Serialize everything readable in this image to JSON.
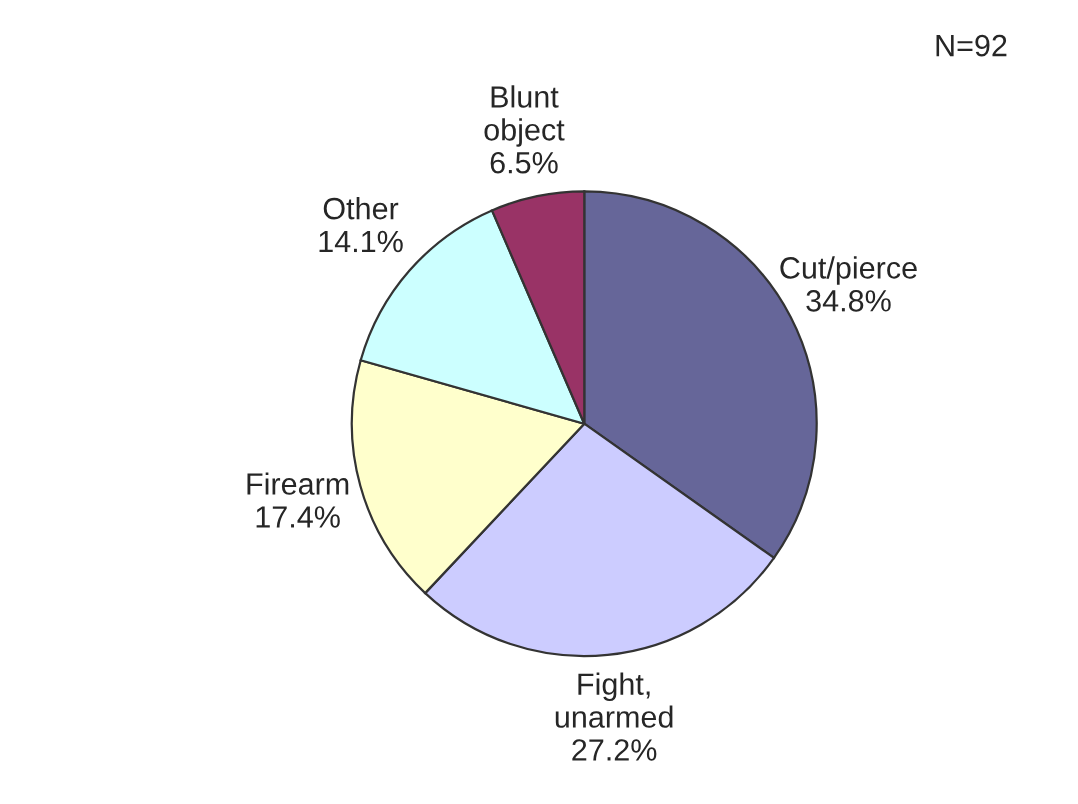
{
  "chart_data": {
    "type": "pie",
    "categories": [
      "Cut/pierce",
      "Fight,\nunarmed",
      "Firearm",
      "Other",
      "Blunt\nobject"
    ],
    "values": [
      34.8,
      27.2,
      17.4,
      14.1,
      6.5
    ],
    "colors": [
      "#666699",
      "#ccccff",
      "#ffffcc",
      "#ccffff",
      "#993366"
    ],
    "value_labels": [
      "34.8%",
      "27.2%",
      "17.4%",
      "14.1%",
      "6.5%"
    ],
    "annotations": [
      "N=92"
    ],
    "legend": false
  }
}
